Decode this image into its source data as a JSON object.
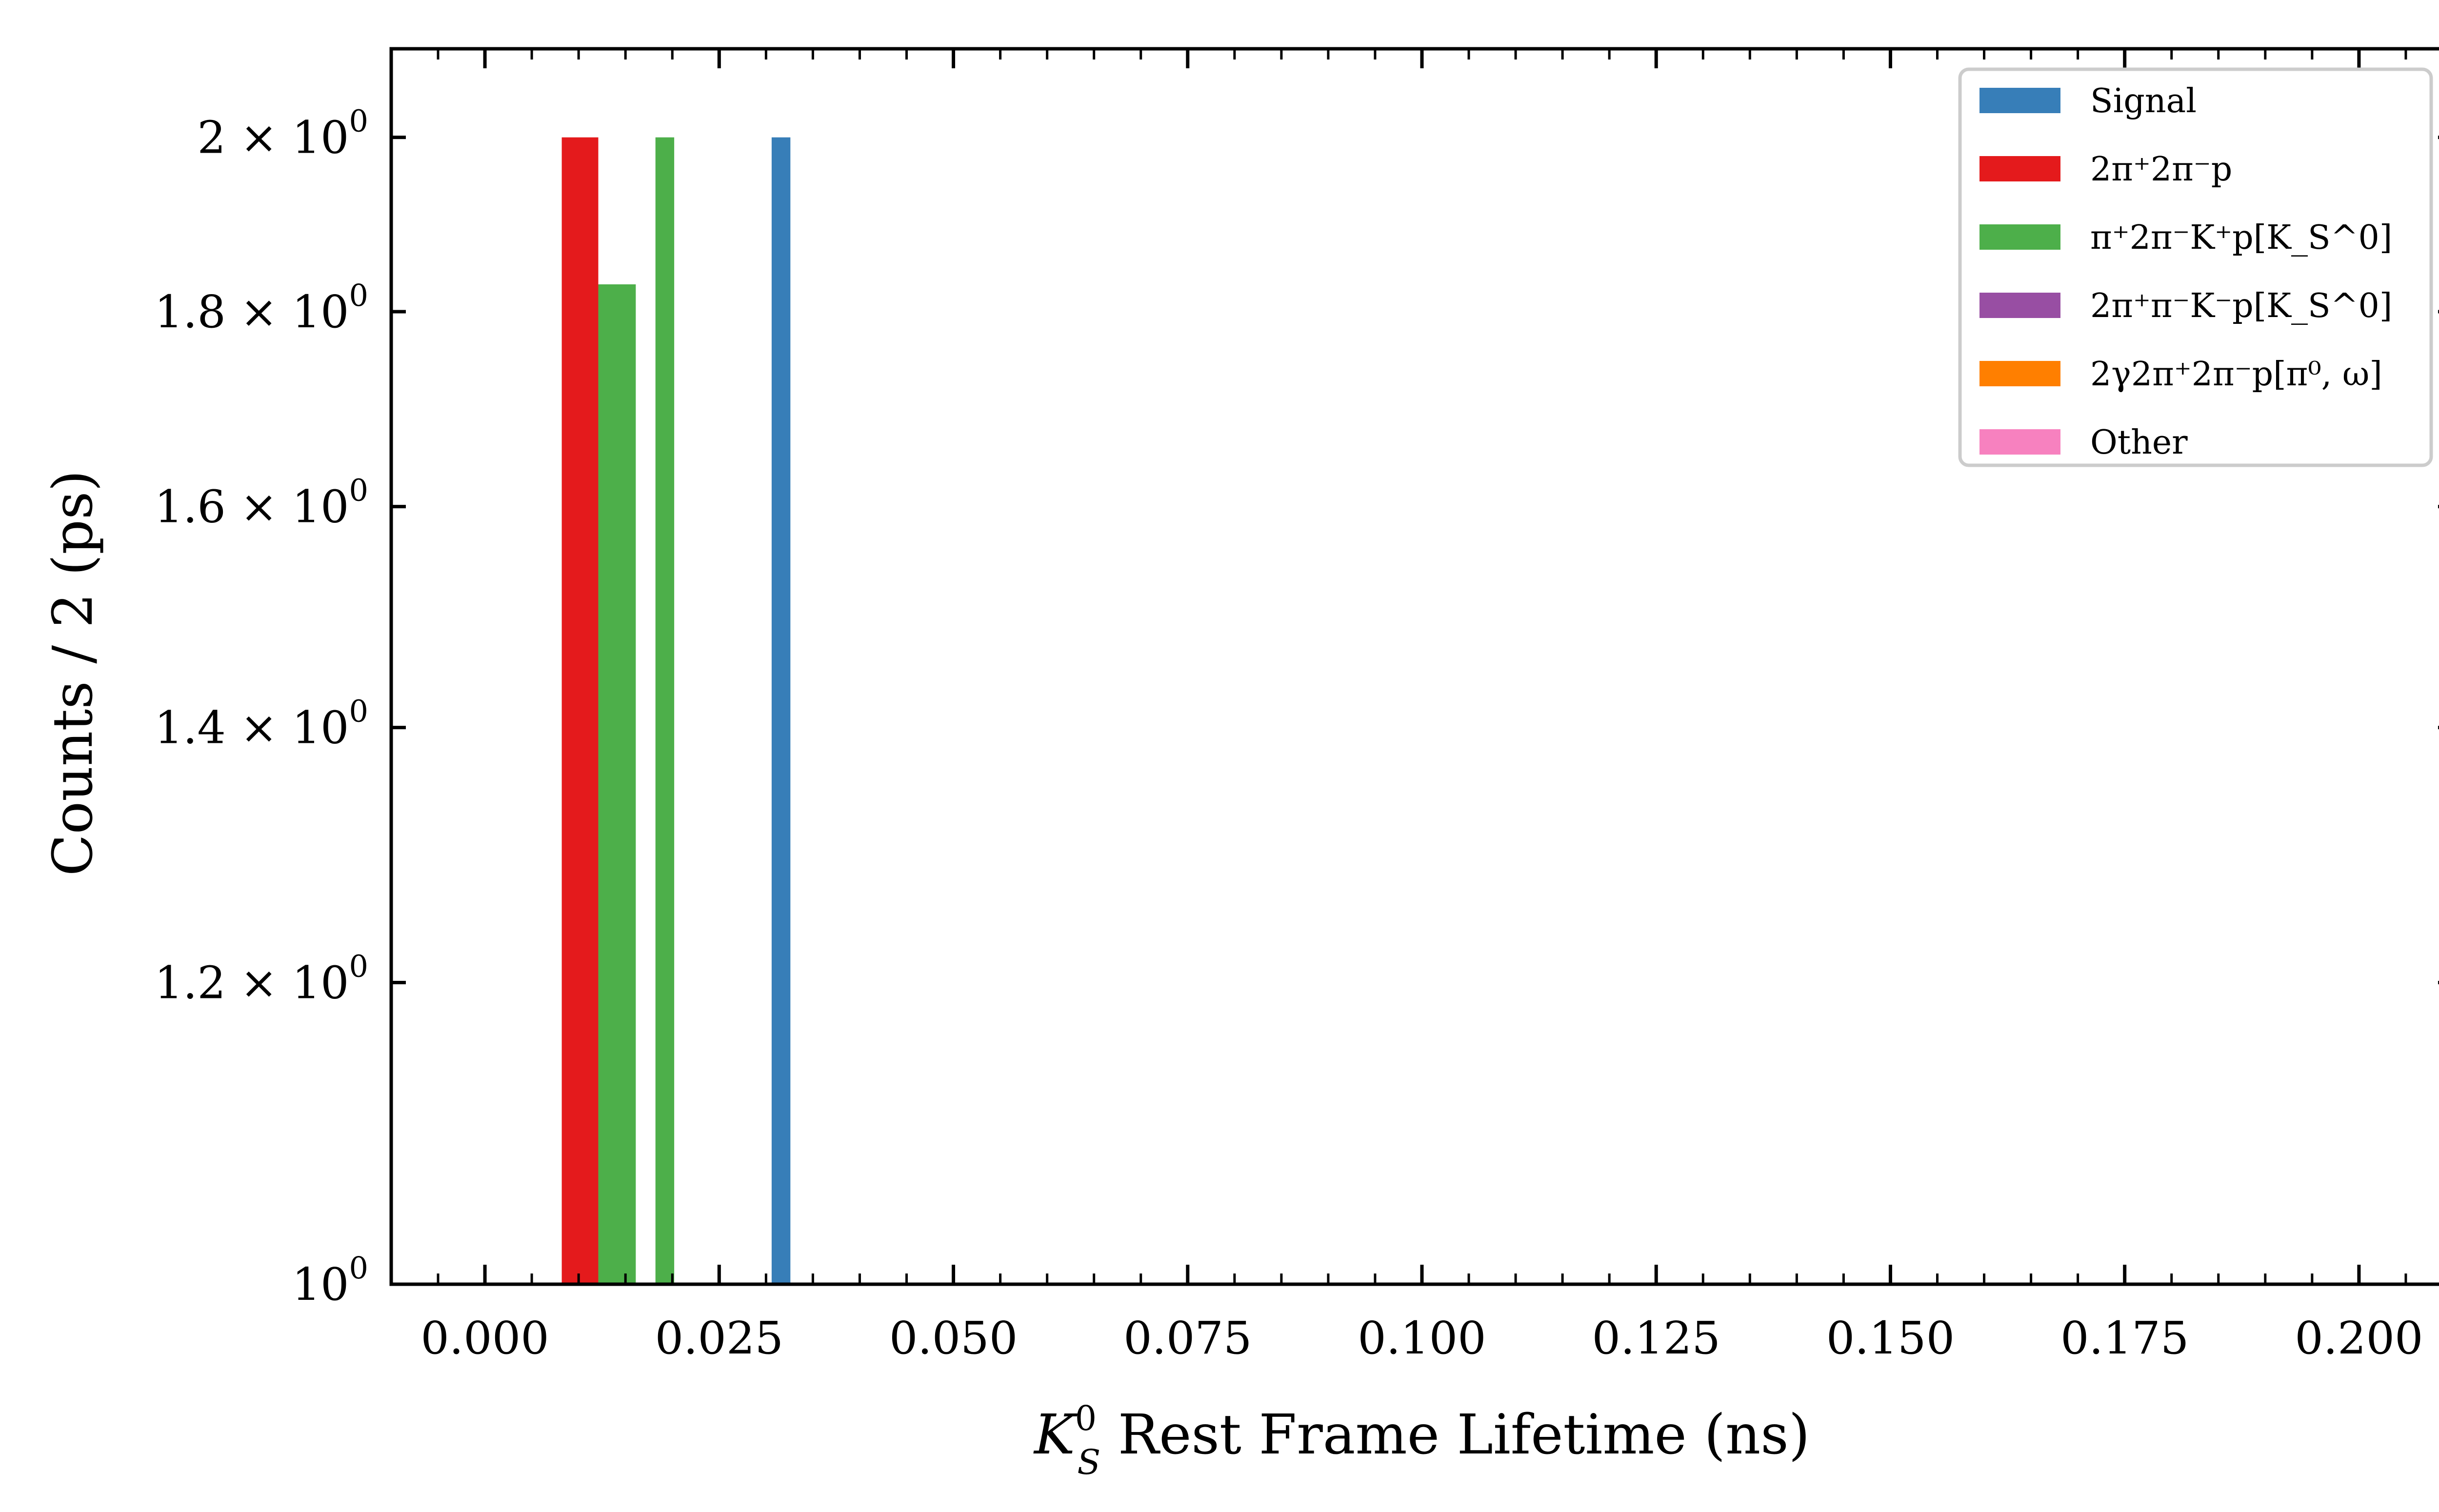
{
  "chart_data": {
    "type": "bar",
    "title": "",
    "xlabel": "K_S^0 Rest Frame Lifetime (ns)",
    "xlabel_parts": {
      "symbol": "K",
      "sup": "0",
      "sub": "S",
      "rest": " Rest Frame Lifetime (ns)"
    },
    "ylabel": "Counts / 2 (ps)",
    "xlim": [
      -0.01,
      0.21
    ],
    "ylim": [
      1.0,
      2.11
    ],
    "yscale": "log",
    "bin_width": 0.002,
    "x_ticks": [
      0.0,
      0.025,
      0.05,
      0.075,
      0.1,
      0.125,
      0.15,
      0.175,
      0.2
    ],
    "x_tick_labels": [
      "0.000",
      "0.025",
      "0.050",
      "0.075",
      "0.100",
      "0.125",
      "0.150",
      "0.175",
      "0.200"
    ],
    "y_ticks": [
      1.0,
      1.2,
      1.4,
      1.6,
      1.8,
      2.0
    ],
    "y_tick_labels": [
      {
        "mantissa": "",
        "exp": "0"
      },
      {
        "mantissa": "1.2",
        "exp": "0"
      },
      {
        "mantissa": "1.4",
        "exp": "0"
      },
      {
        "mantissa": "1.6",
        "exp": "0"
      },
      {
        "mantissa": "1.8",
        "exp": "0"
      },
      {
        "mantissa": "2",
        "exp": "0"
      }
    ],
    "legend_position": "upper-right",
    "grid": false,
    "series": [
      {
        "name": "Signal",
        "color": "#377eb8",
        "bars": [
          {
            "x0": 0.0306,
            "x1": 0.0326,
            "value": 2.0
          }
        ]
      },
      {
        "name": "2π⁺2π⁻p",
        "color": "#e41a1c",
        "bars": [
          {
            "x0": 0.0082,
            "x1": 0.0121,
            "value": 2.0
          }
        ]
      },
      {
        "name": "π⁺2π⁻K⁺p[K_S^0]",
        "color": "#4daf4a",
        "bars": [
          {
            "x0": 0.0121,
            "x1": 0.0161,
            "value": 1.83
          },
          {
            "x0": 0.0182,
            "x1": 0.0202,
            "value": 2.0
          }
        ]
      },
      {
        "name": "2π⁺π⁻K⁻p[K_S^0]",
        "color": "#984ea3",
        "bars": []
      },
      {
        "name": "2γ2π⁺2π⁻p[π⁰, ω]",
        "color": "#ff7f00",
        "bars": []
      },
      {
        "name": "Other",
        "color": "#f781bf",
        "bars": []
      }
    ]
  }
}
